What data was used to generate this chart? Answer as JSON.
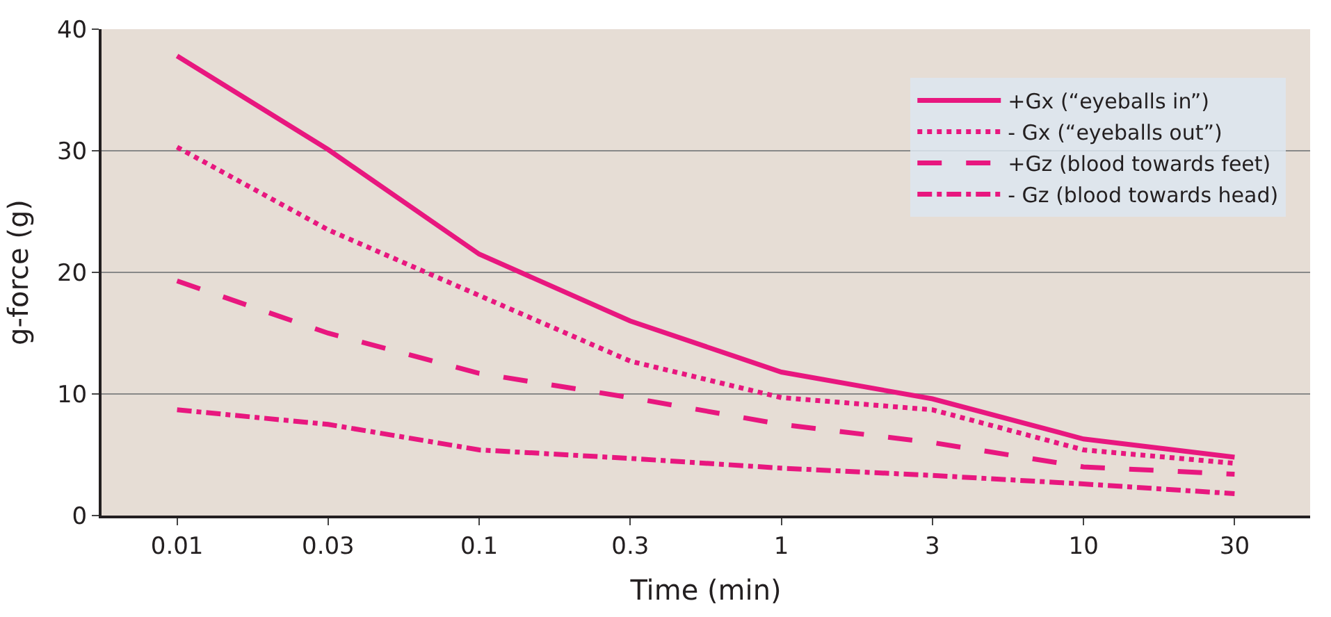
{
  "chart_data": {
    "type": "line",
    "xlabel": "Time (min)",
    "ylabel": "g-force (g)",
    "categories": [
      "0.01",
      "0.03",
      "0.1",
      "0.3",
      "1",
      "3",
      "10",
      "30"
    ],
    "series": [
      {
        "name": "+Gx (“eyeballs in”)",
        "color": "#e8177f",
        "line_style": "solid",
        "values": [
          37.8,
          30.1,
          21.5,
          16,
          11.8,
          9.6,
          6.3,
          4.8
        ]
      },
      {
        "name": "- Gx (“eyeballs out”)",
        "color": "#e8177f",
        "line_style": "dotted",
        "values": [
          30.3,
          23.5,
          18.1,
          12.7,
          9.7,
          8.7,
          5.4,
          4.3
        ]
      },
      {
        "name": "+Gz (blood towards feet)",
        "color": "#e8177f",
        "line_style": "dashed",
        "values": [
          19.3,
          15,
          11.7,
          9.7,
          7.5,
          6,
          4,
          3.4
        ]
      },
      {
        "name": "- Gz (blood towards head)",
        "color": "#e8177f",
        "line_style": "dashdot",
        "values": [
          8.7,
          7.5,
          5.4,
          4.7,
          3.9,
          3.3,
          2.6,
          1.8
        ]
      }
    ],
    "ylim": [
      0,
      40
    ],
    "yticks": [
      0,
      10,
      20,
      30,
      40
    ],
    "grid": "y",
    "legend": "top right",
    "marker": "none"
  }
}
